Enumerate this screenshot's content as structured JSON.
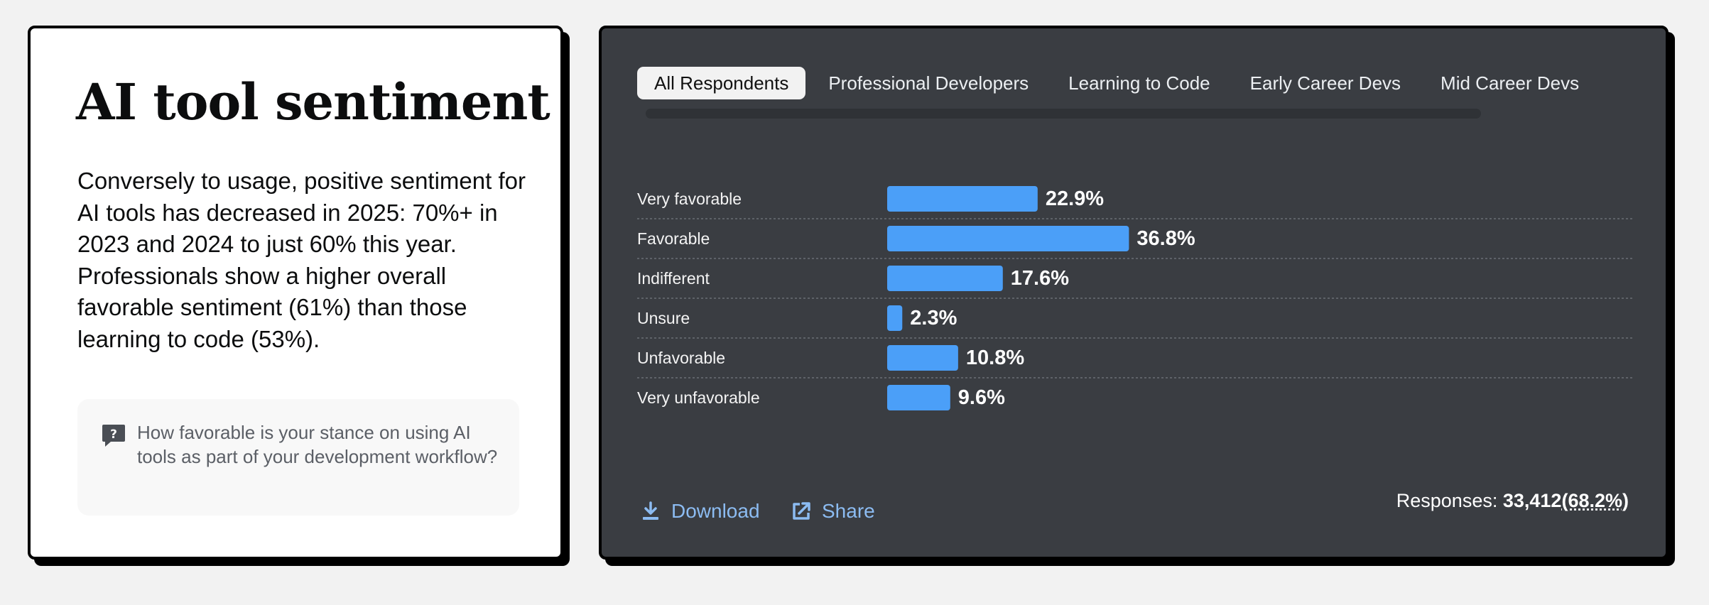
{
  "left": {
    "title": "AI tool sentiment",
    "description": "Conversely to usage, positive sentiment for AI tools has decreased in 2025: 70%+ in 2023 and 2024 to just 60% this year. Professionals show a higher overall favorable sentiment (61%) than those learning to code (53%).",
    "question": "How favorable is your stance on using AI tools as part of your development workflow?",
    "question_icon": "question-bubble-icon"
  },
  "tabs": [
    {
      "label": "All Respondents",
      "active": true
    },
    {
      "label": "Professional Developers",
      "active": false
    },
    {
      "label": "Learning to Code",
      "active": false
    },
    {
      "label": "Early Career Devs",
      "active": false
    },
    {
      "label": "Mid Career Devs",
      "active": false
    }
  ],
  "chart_data": {
    "type": "bar",
    "orientation": "horizontal",
    "categories": [
      "Very favorable",
      "Favorable",
      "Indifferent",
      "Unsure",
      "Unfavorable",
      "Very unfavorable"
    ],
    "values": [
      22.9,
      36.8,
      17.6,
      2.3,
      10.8,
      9.6
    ],
    "value_labels": [
      "22.9%",
      "36.8%",
      "17.6%",
      "2.3%",
      "10.8%",
      "9.6%"
    ],
    "unit": "%",
    "bar_color": "#4b9ff8",
    "grid": false
  },
  "footer": {
    "download_label": "Download",
    "share_label": "Share",
    "responses_label": "Responses:",
    "responses_count": "33,412",
    "responses_pct": "(68.2%)"
  },
  "colors": {
    "panel_bg": "#3a3d42",
    "accent": "#4b9ff8",
    "link": "#8cbcf2"
  }
}
